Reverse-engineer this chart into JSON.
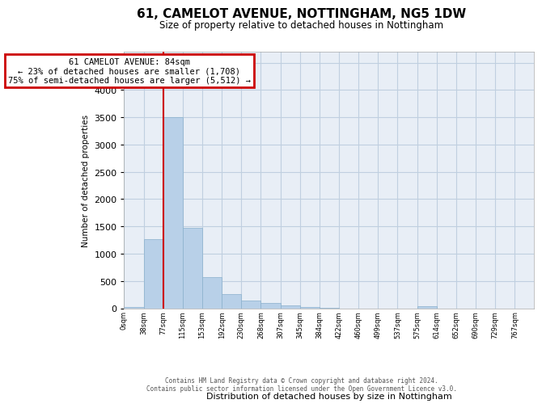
{
  "title": "61, CAMELOT AVENUE, NOTTINGHAM, NG5 1DW",
  "subtitle": "Size of property relative to detached houses in Nottingham",
  "xlabel": "Distribution of detached houses by size in Nottingham",
  "ylabel": "Number of detached properties",
  "bar_color": "#b8d0e8",
  "bar_edge_color": "#8ab0cc",
  "background_color": "#ffffff",
  "plot_bg_color": "#e8eef6",
  "grid_color": "#c0cfe0",
  "bin_labels": [
    "0sqm",
    "38sqm",
    "77sqm",
    "115sqm",
    "153sqm",
    "192sqm",
    "230sqm",
    "268sqm",
    "307sqm",
    "345sqm",
    "384sqm",
    "422sqm",
    "460sqm",
    "499sqm",
    "537sqm",
    "575sqm",
    "614sqm",
    "652sqm",
    "690sqm",
    "729sqm",
    "767sqm"
  ],
  "bar_heights": [
    28,
    1270,
    3500,
    1480,
    570,
    265,
    140,
    90,
    50,
    28,
    10,
    0,
    0,
    0,
    0,
    32,
    0,
    0,
    0,
    0,
    0
  ],
  "ylim": [
    0,
    4700
  ],
  "yticks": [
    0,
    500,
    1000,
    1500,
    2000,
    2500,
    3000,
    3500,
    4000,
    4500
  ],
  "vline_x_idx": 2,
  "vline_color": "#cc0000",
  "annotation_line1": "61 CAMELOT AVENUE: 84sqm",
  "annotation_line2": "← 23% of detached houses are smaller (1,708)",
  "annotation_line3": "75% of semi-detached houses are larger (5,512) →",
  "annotation_box_facecolor": "#ffffff",
  "annotation_box_edgecolor": "#cc0000",
  "footer_line1": "Contains HM Land Registry data © Crown copyright and database right 2024.",
  "footer_line2": "Contains public sector information licensed under the Open Government Licence v3.0."
}
